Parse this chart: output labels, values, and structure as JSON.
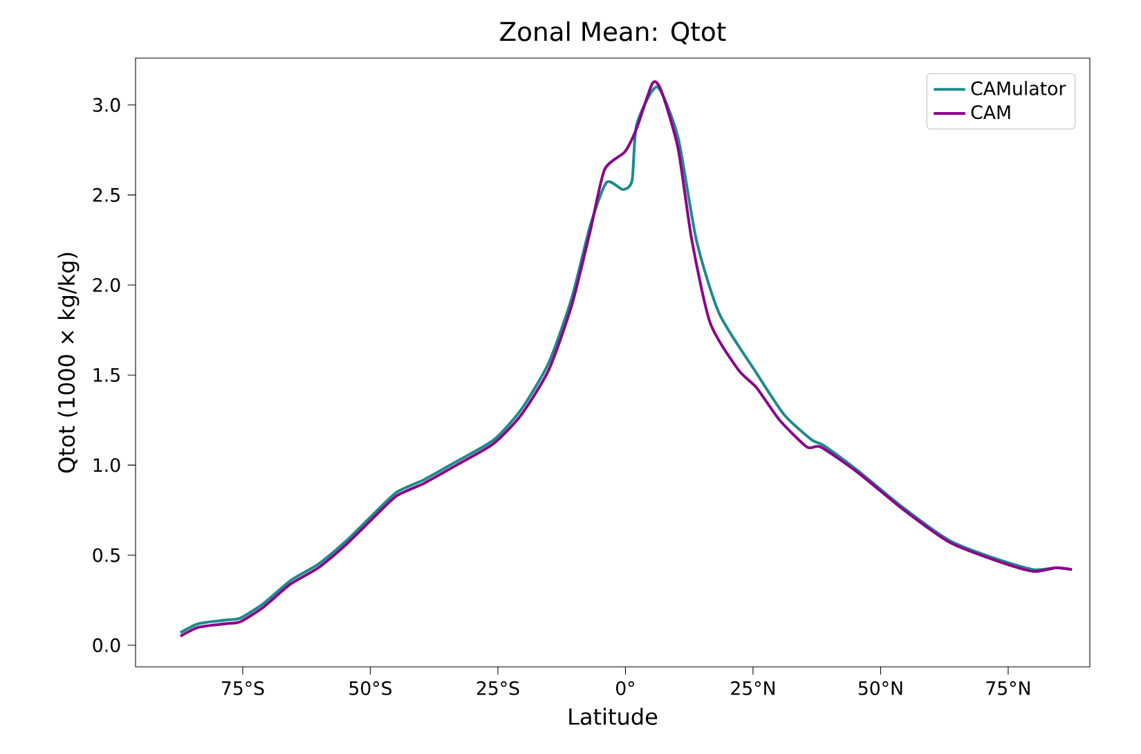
{
  "chart_data": {
    "type": "line",
    "title": "Zonal Mean: Qtot",
    "xlabel": "Latitude",
    "ylabel": "Qtot (1000 × kg/kg)",
    "xlim": [
      -96,
      91
    ],
    "ylim": [
      -0.12,
      3.26
    ],
    "xticks": [
      {
        "value": -75,
        "label": "75°S"
      },
      {
        "value": -50,
        "label": "50°S"
      },
      {
        "value": -25,
        "label": "25°S"
      },
      {
        "value": 0,
        "label": "0°"
      },
      {
        "value": 25,
        "label": "25°N"
      },
      {
        "value": 50,
        "label": "50°N"
      },
      {
        "value": 75,
        "label": "75°N"
      }
    ],
    "yticks": [
      {
        "value": 0,
        "label": "0.0"
      },
      {
        "value": 0.5,
        "label": "0.5"
      },
      {
        "value": 1,
        "label": "1.0"
      },
      {
        "value": 1.5,
        "label": "1.5"
      },
      {
        "value": 2,
        "label": "2.0"
      },
      {
        "value": 2.5,
        "label": "2.5"
      },
      {
        "value": 3,
        "label": "3.0"
      }
    ],
    "legend": "top right",
    "grid": false,
    "series": [
      {
        "name": "CAMulator",
        "color": "#1f8a8a",
        "x": [
          -87.2,
          -83.6,
          -78.2,
          -75.5,
          -71,
          -65.6,
          -60.2,
          -54.7,
          -49.3,
          -44.8,
          -39.4,
          -33.1,
          -25.8,
          -20.4,
          -15,
          -10.5,
          -6.9,
          -3.7,
          -0.5,
          1.3,
          2.2,
          6.2,
          10.3,
          13.9,
          18.4,
          25.7,
          31.1,
          36.5,
          38.8,
          45.5,
          54.6,
          63.6,
          72.6,
          79.9,
          84.4,
          87.5
        ],
        "values": [
          0.07,
          0.12,
          0.14,
          0.15,
          0.23,
          0.36,
          0.45,
          0.58,
          0.73,
          0.85,
          0.92,
          1.02,
          1.14,
          1.31,
          1.57,
          1.93,
          2.33,
          2.57,
          2.53,
          2.58,
          2.89,
          3.1,
          2.82,
          2.25,
          1.84,
          1.51,
          1.28,
          1.14,
          1.11,
          0.97,
          0.76,
          0.58,
          0.48,
          0.42,
          0.43,
          0.42
        ]
      },
      {
        "name": "CAM",
        "color": "#8b008b",
        "x": [
          -87.2,
          -83.6,
          -78.2,
          -75.5,
          -71,
          -65.6,
          -60.2,
          -54.7,
          -49.3,
          -44.8,
          -39.4,
          -33.1,
          -25.8,
          -20.4,
          -15,
          -10.5,
          -6.9,
          -4.1,
          -0.1,
          2.2,
          5.3,
          7.0,
          10.3,
          13.0,
          16.6,
          22.1,
          25.7,
          30.2,
          35.6,
          38.3,
          45.5,
          54.6,
          63.6,
          72.6,
          79.9,
          84.4,
          87.5
        ],
        "values": [
          0.05,
          0.1,
          0.12,
          0.13,
          0.21,
          0.34,
          0.43,
          0.56,
          0.71,
          0.83,
          0.9,
          1.0,
          1.12,
          1.28,
          1.53,
          1.89,
          2.3,
          2.64,
          2.74,
          2.87,
          3.12,
          3.08,
          2.76,
          2.25,
          1.79,
          1.53,
          1.43,
          1.25,
          1.1,
          1.1,
          0.96,
          0.75,
          0.57,
          0.47,
          0.41,
          0.43,
          0.42
        ]
      }
    ]
  }
}
